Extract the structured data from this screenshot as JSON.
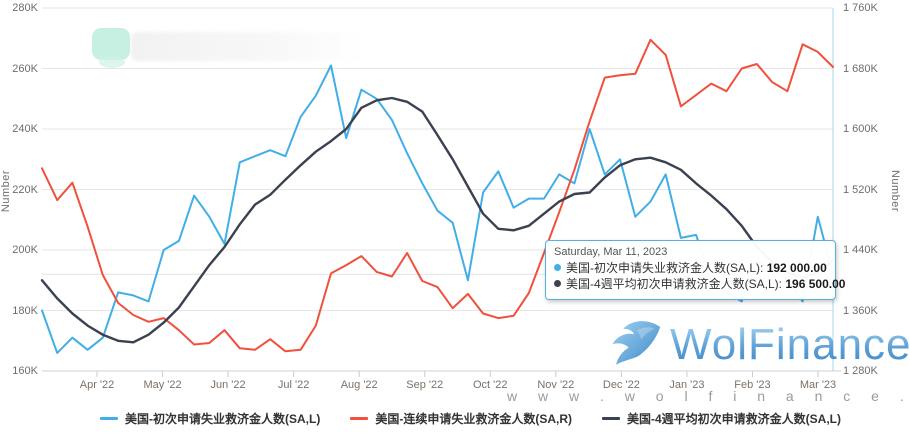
{
  "chart": {
    "left_axis": {
      "title": "Number",
      "tick_labels": [
        "280K",
        "260K",
        "240K",
        "220K",
        "200K",
        "180K",
        "160K"
      ],
      "tick_values": [
        280,
        260,
        240,
        220,
        200,
        180,
        160
      ],
      "min": 160,
      "max": 280
    },
    "right_axis": {
      "title": "Number",
      "tick_labels": [
        "1 760K",
        "1 680K",
        "1 600K",
        "1 520K",
        "1 440K",
        "1 360K",
        "1 280K"
      ],
      "tick_values": [
        1760,
        1680,
        1600,
        1520,
        1440,
        1360,
        1280
      ],
      "min": 1280,
      "max": 1760
    },
    "x_axis": {
      "tick_labels": [
        "Apr '22",
        "May '22",
        "Jun '22",
        "Jul '22",
        "Aug '22",
        "Sep '22",
        "Oct '22",
        "Nov '22",
        "Dec '22",
        "Jan '23",
        "Feb '23",
        "Mar '23"
      ]
    },
    "colors": {
      "gridline": "#e6e6e6",
      "axis_line": "#d0d0d0",
      "tick_mark": "#cccccc",
      "crosshair": "rgba(102,178,226,0.55)",
      "last_value_line": "#e2e2e2"
    }
  },
  "chart_data": {
    "type": "line",
    "title": "",
    "unit": "values in thousands (K), weekly points from mid-Mar 2022 to Mar 11 2023",
    "x_range": [
      "Mar 2022",
      "Mar 11, 2023"
    ],
    "grid": true,
    "legend_position": "bottom",
    "series": [
      {
        "name": "美国-初次申请失业救济金人数(SA,L)",
        "axis": "left",
        "color": "#41aee8",
        "values": [
          180,
          166,
          171,
          167,
          171,
          186,
          185,
          183,
          200,
          203,
          218,
          211,
          202,
          229,
          231,
          233,
          231,
          244,
          251,
          261,
          237,
          253,
          250,
          243,
          232,
          222,
          213,
          209,
          190,
          219,
          226,
          214,
          217,
          217,
          225,
          222,
          240,
          225,
          230,
          211,
          216,
          225,
          204,
          205,
          190,
          186,
          183,
          196,
          194,
          190,
          183,
          211,
          192
        ]
      },
      {
        "name": "美国-连续申请失业救济金人数(SA,R)",
        "axis": "right",
        "color": "#f0503c",
        "values": [
          1548,
          1506,
          1529,
          1471,
          1407,
          1370,
          1354,
          1345,
          1350,
          1334,
          1315,
          1317,
          1334,
          1310,
          1308,
          1322,
          1306,
          1308,
          1340,
          1409,
          1420,
          1432,
          1411,
          1405,
          1436,
          1399,
          1391,
          1363,
          1382,
          1356,
          1350,
          1353,
          1383,
          1436,
          1490,
          1546,
          1610,
          1668,
          1671,
          1673,
          1718,
          1698,
          1630,
          1645,
          1660,
          1650,
          1680,
          1686,
          1662,
          1650,
          1712,
          1702,
          1682
        ]
      },
      {
        "name": "美国-4週平均初次申请救济金人数(SA,L)",
        "axis": "left",
        "color": "#3b4150",
        "values": [
          190,
          184,
          179,
          175,
          172,
          170,
          169.5,
          172,
          176,
          181,
          188,
          195,
          201,
          208.5,
          215,
          218.25,
          223.25,
          228,
          232.5,
          236,
          240,
          247,
          249.5,
          250.25,
          249,
          245.75,
          238,
          230,
          221,
          212,
          207,
          206.5,
          208,
          212,
          216,
          218.5,
          219,
          224,
          228,
          230,
          230.5,
          229,
          226.5,
          222,
          218,
          213.5,
          208,
          201,
          196,
          192.5,
          191,
          192.5,
          196.5
        ]
      }
    ],
    "last_value_line_left": 192,
    "ylim_left": [
      160,
      280
    ],
    "ylim_right": [
      1280,
      1760
    ]
  },
  "tooltip": {
    "title": "Saturday, Mar 11, 2023",
    "rows": [
      {
        "series": 0,
        "label": "美国-初次申请失业救济金人数(SA,L): ",
        "value": "192 000.00"
      },
      {
        "series": 2,
        "label": "美国-4週平均初次申请救济金人数(SA,L): ",
        "value": "196 500.00"
      }
    ]
  },
  "watermark": {
    "brand": "WolFinance",
    "url": "w w w . w o l f i n a n c e . c o m"
  }
}
